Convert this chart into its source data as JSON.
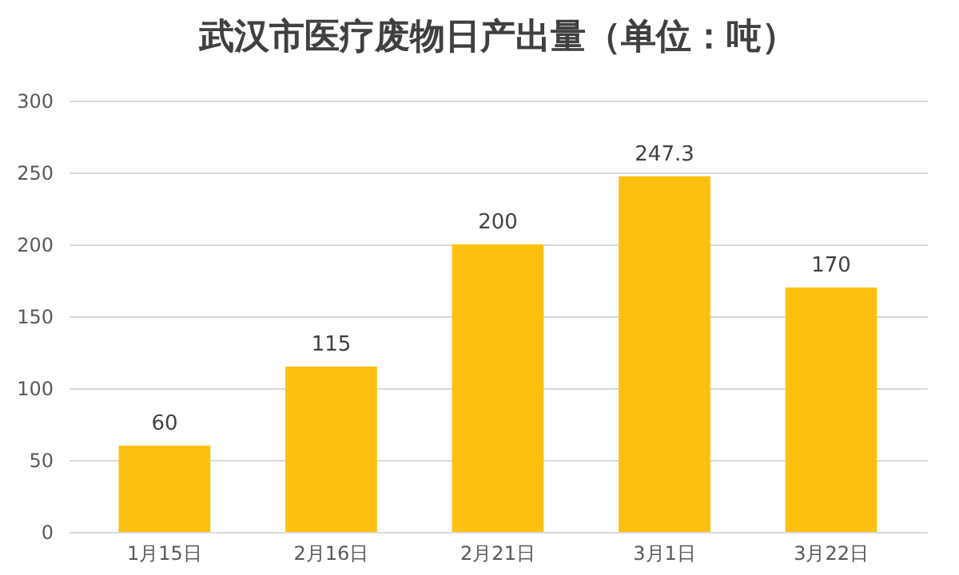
{
  "chart_data": {
    "type": "bar",
    "title": "武汉市医疗废物日产出量（单位：吨）",
    "categories": [
      "1月15日",
      "2月16日",
      "2月21日",
      "3月1日",
      "3月22日"
    ],
    "values": [
      60,
      115,
      200,
      247.3,
      170
    ],
    "color": "#fdc011",
    "ylim": [
      0,
      300
    ],
    "yticks": [
      0,
      50,
      100,
      150,
      200,
      250,
      300
    ],
    "grid": "y",
    "data_labels": true
  }
}
